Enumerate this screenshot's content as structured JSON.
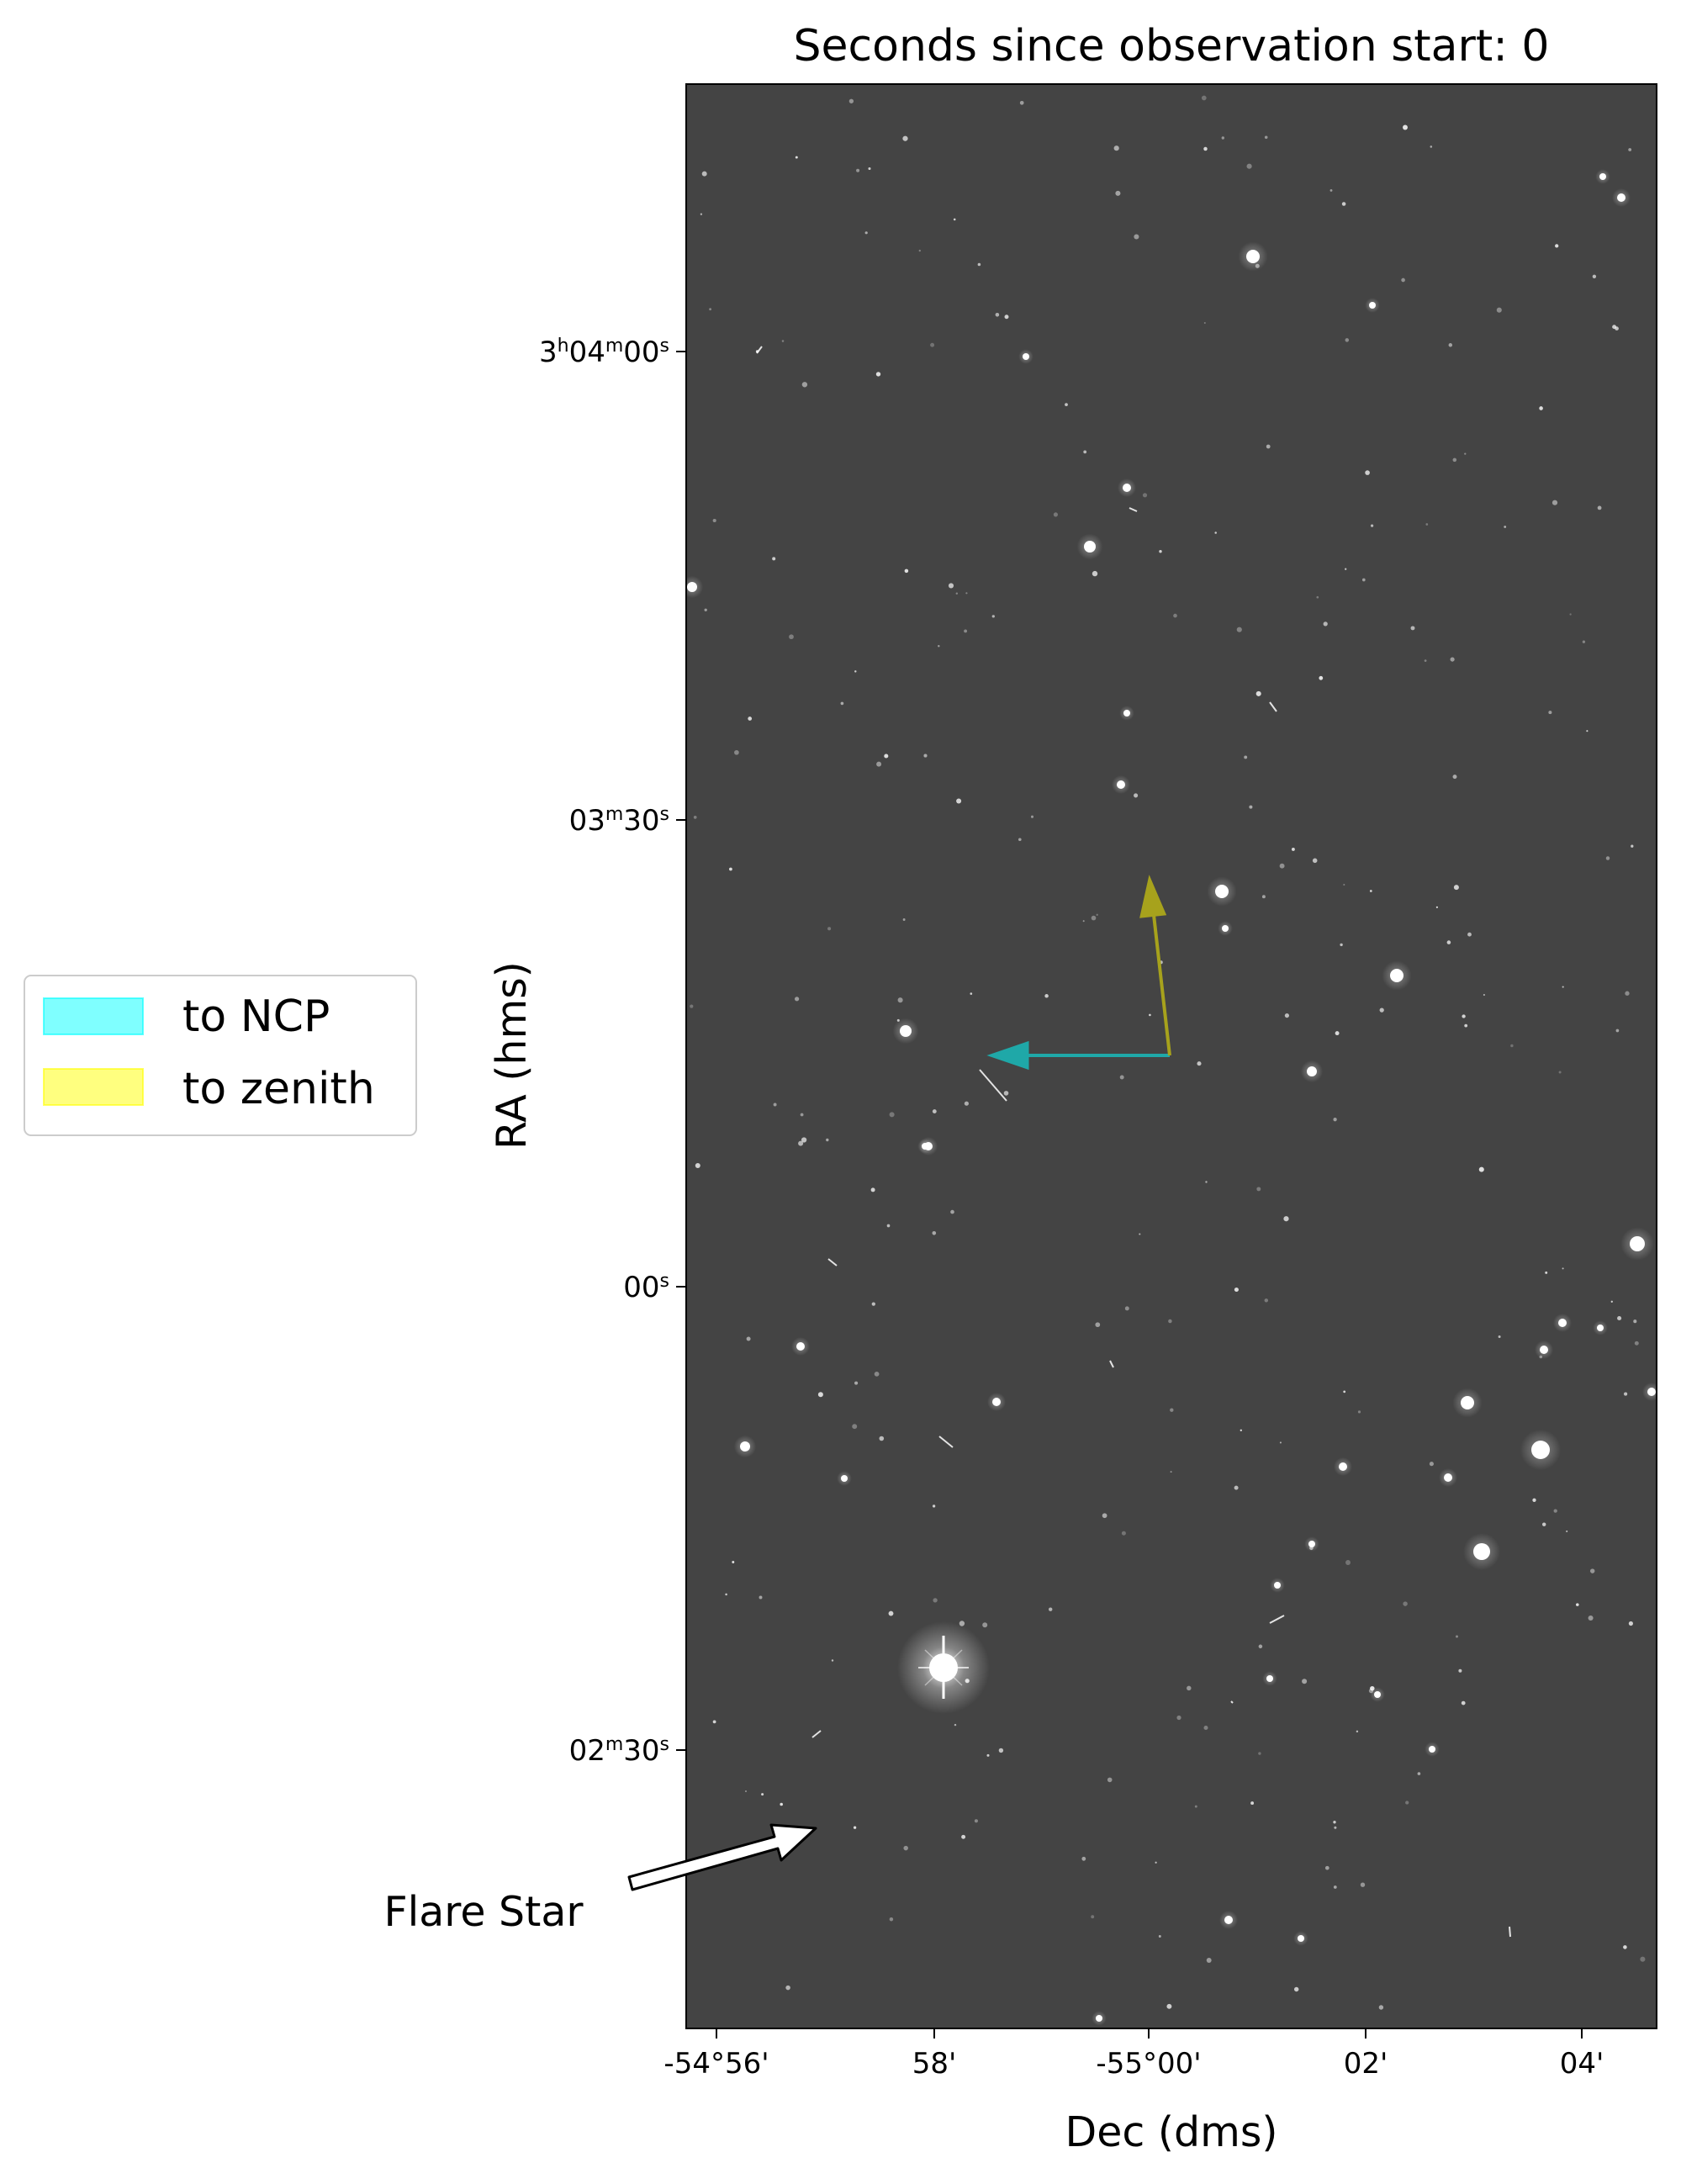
{
  "title": "Seconds since observation start: 0",
  "xlabel": "Dec (dms)",
  "ylabel": "RA (hms)",
  "x_ticks": [
    {
      "label": "-54°56'",
      "value": -54.9333
    },
    {
      "label": "58'",
      "value": -54.9667
    },
    {
      "label": "-55°00'",
      "value": -55.0
    },
    {
      "label": "02'",
      "value": -55.0333
    },
    {
      "label": "04'",
      "value": -55.0667
    }
  ],
  "y_ticks": [
    {
      "label": "3h04m00s",
      "h": "3",
      "m": "04",
      "s": "00",
      "parts": [
        "h",
        "m",
        "s"
      ]
    },
    {
      "label": "03m30s",
      "m": "03",
      "s": "30",
      "parts": [
        "m",
        "s"
      ]
    },
    {
      "label": "00s",
      "s": "00",
      "parts": [
        "s"
      ]
    },
    {
      "label": "02m30s",
      "m": "02",
      "s": "30",
      "parts": [
        "m",
        "s"
      ]
    }
  ],
  "legend": {
    "placement": "left",
    "items": [
      {
        "label": "to NCP",
        "color": "#00ffff"
      },
      {
        "label": "to zenith",
        "color": "#ffff00"
      }
    ]
  },
  "annotation": {
    "label": "Flare Star",
    "arrow_color": "#ffffff"
  },
  "image": {
    "background_color": "#444444",
    "ncp_arrow_color": "#1fa8a8",
    "zenith_arrow_color": "#a7a21c"
  }
}
